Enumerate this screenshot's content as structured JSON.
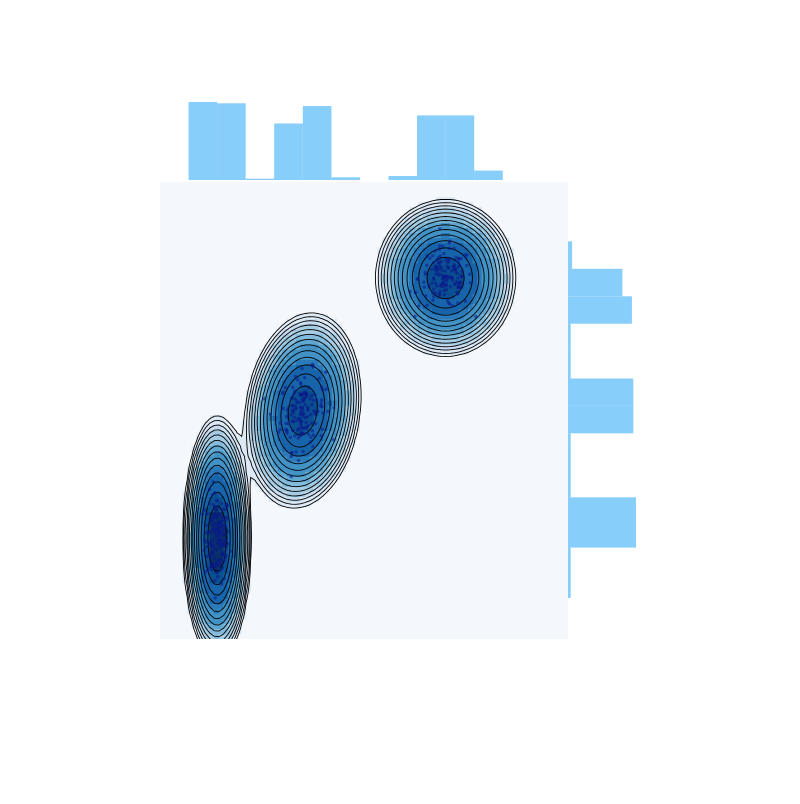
{
  "chart_data": {
    "type": "scatter",
    "subtype": "joint-kde-with-marginal-histograms",
    "title": "",
    "xlabel": "",
    "ylabel": "",
    "axes_visible": false,
    "grid": false,
    "xlim": [
      0,
      10
    ],
    "ylim": [
      0,
      10
    ],
    "colors": {
      "background": "#f4f8fd",
      "kde_fill": [
        "#f4f8fd",
        "#dde9f5",
        "#c6dbef",
        "#a6cde4",
        "#82bbdb",
        "#5fa6d1",
        "#4292c6",
        "#2b7bba",
        "#1764ab",
        "#0a4f92",
        "#08306b"
      ],
      "contour_line": "#000000",
      "points": "#0b1a8a",
      "histogram": "#87cefa"
    },
    "clusters": [
      {
        "center": [
          1.4,
          2.2
        ],
        "std": [
          0.28,
          0.9
        ],
        "corr": 0,
        "n": 150,
        "shape": "tall-narrow"
      },
      {
        "center": [
          3.5,
          5.0
        ],
        "std": [
          0.5,
          0.75
        ],
        "corr": 0.15,
        "n": 150,
        "shape": "broad"
      },
      {
        "center": [
          7.0,
          7.9
        ],
        "std": [
          0.6,
          0.6
        ],
        "corr": 0,
        "n": 150,
        "shape": "round"
      }
    ],
    "contour_levels": 14,
    "marginal_x": {
      "orientation": "top",
      "bins": [
        {
          "x0": 0.7,
          "x1": 1.4,
          "count": 58
        },
        {
          "x0": 1.4,
          "x1": 2.1,
          "count": 57
        },
        {
          "x0": 2.1,
          "x1": 2.8,
          "count": 1
        },
        {
          "x0": 2.8,
          "x1": 3.5,
          "count": 42
        },
        {
          "x0": 3.5,
          "x1": 4.2,
          "count": 55
        },
        {
          "x0": 4.2,
          "x1": 4.9,
          "count": 2
        },
        {
          "x0": 5.6,
          "x1": 6.3,
          "count": 3
        },
        {
          "x0": 6.3,
          "x1": 7.0,
          "count": 48
        },
        {
          "x0": 7.0,
          "x1": 7.7,
          "count": 48
        },
        {
          "x0": 7.7,
          "x1": 8.4,
          "count": 7
        }
      ]
    },
    "marginal_y": {
      "orientation": "right",
      "bins": [
        {
          "y0": 0.9,
          "y1": 2.0,
          "count": 2
        },
        {
          "y0": 2.0,
          "y1": 3.1,
          "count": 50
        },
        {
          "y0": 3.1,
          "y1": 4.2,
          "count": 2
        },
        {
          "y0": 4.2,
          "y1": 4.5,
          "count": 2
        },
        {
          "y0": 4.5,
          "y1": 5.1,
          "count": 48
        },
        {
          "y0": 5.1,
          "y1": 5.7,
          "count": 48
        },
        {
          "y0": 5.7,
          "y1": 6.3,
          "count": 2
        },
        {
          "y0": 6.3,
          "y1": 6.9,
          "count": 2
        },
        {
          "y0": 6.9,
          "y1": 7.5,
          "count": 47
        },
        {
          "y0": 7.5,
          "y1": 8.1,
          "count": 40
        },
        {
          "y0": 8.1,
          "y1": 8.7,
          "count": 3
        }
      ]
    }
  }
}
